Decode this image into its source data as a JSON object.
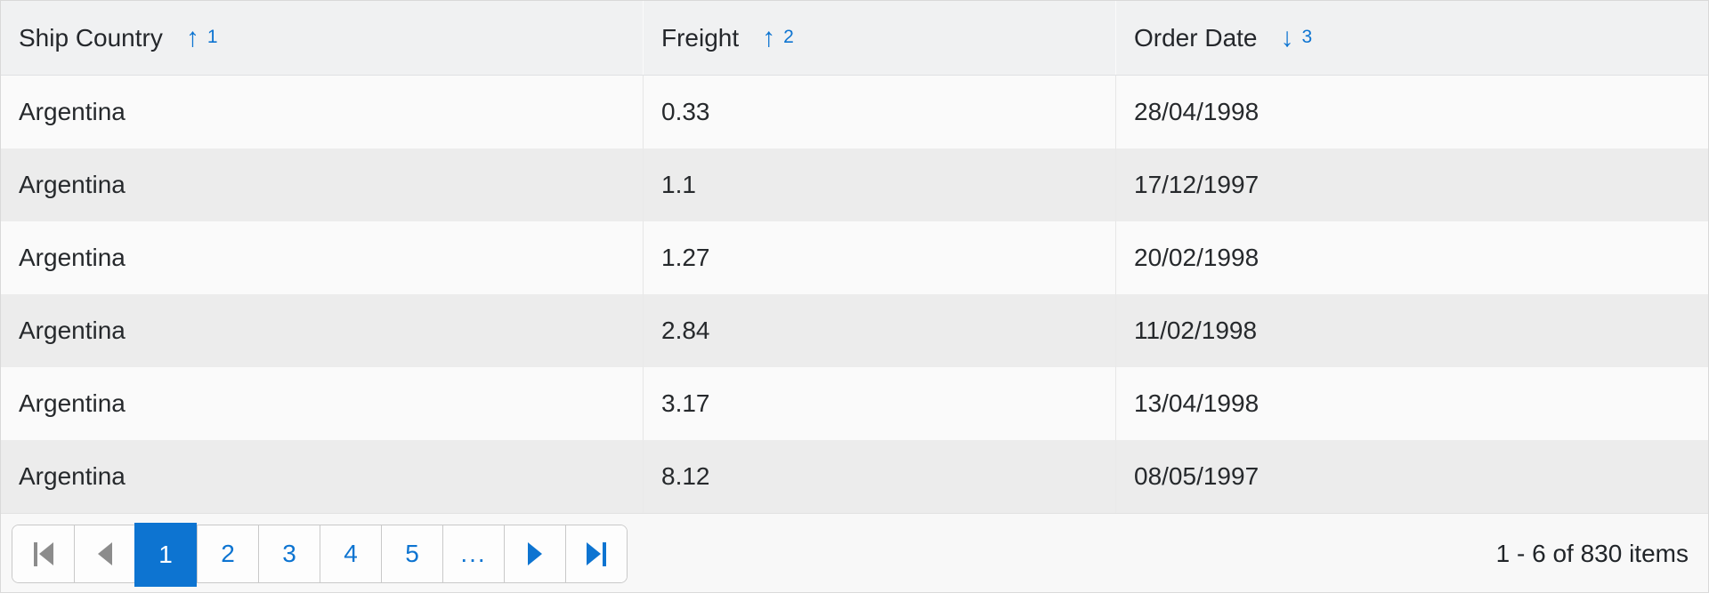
{
  "colors": {
    "accent_blue": "#0d74d1",
    "header_bg": "#f0f1f2",
    "row_bg": "#fafafa",
    "row_alt_bg": "#ececec",
    "footer_bg": "#f8f8f8",
    "disabled_icon_gray": "#8c8c8c",
    "text_dark": "#26292c",
    "border_gray": "#c9c9c9"
  },
  "table": {
    "columns": [
      {
        "label": "Ship Country",
        "sort_arrow": "↑",
        "sort_order": "1",
        "sort_dir": "asc"
      },
      {
        "label": "Freight",
        "sort_arrow": "↑",
        "sort_order": "2",
        "sort_dir": "asc"
      },
      {
        "label": "Order Date",
        "sort_arrow": "↓",
        "sort_order": "3",
        "sort_dir": "desc"
      }
    ],
    "rows": [
      {
        "ship_country": "Argentina",
        "freight": "0.33",
        "order_date": "28/04/1998"
      },
      {
        "ship_country": "Argentina",
        "freight": "1.1",
        "order_date": "17/12/1997"
      },
      {
        "ship_country": "Argentina",
        "freight": "1.27",
        "order_date": "20/02/1998"
      },
      {
        "ship_country": "Argentina",
        "freight": "2.84",
        "order_date": "11/02/1998"
      },
      {
        "ship_country": "Argentina",
        "freight": "3.17",
        "order_date": "13/04/1998"
      },
      {
        "ship_country": "Argentina",
        "freight": "8.12",
        "order_date": "08/05/1997"
      }
    ]
  },
  "pager": {
    "pages": [
      "1",
      "2",
      "3",
      "4",
      "5"
    ],
    "current_page": "1",
    "ellipsis": "...",
    "info": "1 - 6 of 830 items"
  }
}
